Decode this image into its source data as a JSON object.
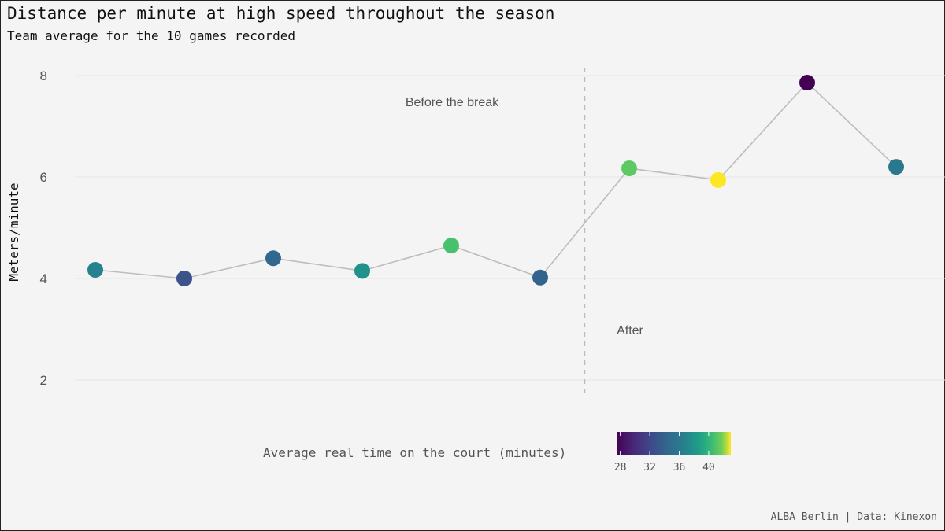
{
  "header": {
    "title": "Distance per minute at high speed throughout the season",
    "subtitle": "Team average for the 10 games recorded"
  },
  "caption": "ALBA Berlin | Data: Kinexon",
  "annotations": {
    "before": "Before the break",
    "after": "After"
  },
  "legend": {
    "title": "Average real time on the court (minutes)",
    "ticks": [
      "28",
      "32",
      "36",
      "40"
    ]
  },
  "axis": {
    "ylabel": "Meters/minute",
    "yticks": [
      "2",
      "4",
      "6",
      "8"
    ]
  },
  "chart_data": {
    "type": "line",
    "title": "Distance per minute at high speed throughout the season",
    "subtitle": "Team average for the 10 games recorded",
    "xlabel": "",
    "ylabel": "Meters/minute",
    "ylim": [
      1.8,
      8.2
    ],
    "yticks": [
      2,
      4,
      6,
      8
    ],
    "x": [
      1,
      2,
      3,
      4,
      5,
      6,
      7,
      8,
      9,
      10
    ],
    "series": [
      {
        "name": "Distance per minute at high speed",
        "values": [
          4.17,
          4.0,
          4.4,
          4.15,
          4.65,
          4.02,
          6.17,
          5.94,
          7.86,
          6.2
        ],
        "point_colors": [
          "#26828e",
          "#3b528b",
          "#31688e",
          "#21918c",
          "#48c16e",
          "#33638d",
          "#5ec962",
          "#fde725",
          "#440154",
          "#2a788e"
        ],
        "color_values_minutes": [
          35,
          30.5,
          33,
          35.5,
          38.5,
          32.5,
          39.5,
          43,
          27.5,
          34
        ]
      }
    ],
    "vline": {
      "x": 6.5,
      "style": "dashed",
      "label_before": "Before the break",
      "label_after": "After"
    },
    "color_scale": {
      "name": "Average real time on the court (minutes)",
      "palette": "viridis",
      "ticks": [
        28,
        32,
        36,
        40
      ],
      "range": [
        27.5,
        43
      ]
    },
    "grid": "horizontal",
    "legend_position": "bottom",
    "caption": "ALBA Berlin | Data: Kinexon"
  }
}
